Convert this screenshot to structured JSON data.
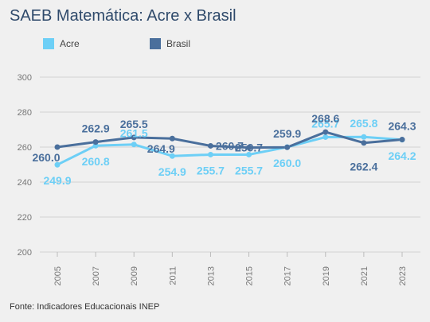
{
  "chart_data": {
    "type": "line",
    "title": "SAEB Matemática: Acre x Brasil",
    "categories": [
      "2005",
      "2007",
      "2009",
      "2011",
      "2013",
      "2015",
      "2017",
      "2019",
      "2021",
      "2023"
    ],
    "ylim": [
      200,
      300
    ],
    "yticks": [
      200,
      220,
      240,
      260,
      280,
      300
    ],
    "grid": true,
    "legend_position": "top-left",
    "series": [
      {
        "name": "Acre",
        "color": "#6dcff6",
        "values": [
          249.9,
          260.8,
          261.5,
          254.9,
          255.7,
          255.7,
          260.0,
          265.7,
          265.8,
          264.2
        ],
        "labels": [
          "249.9",
          "260.8",
          "261.5",
          "254.9",
          "255.7",
          "255.7",
          "260.0",
          "265.7",
          "265.8",
          "264.2"
        ]
      },
      {
        "name": "Brasil",
        "color": "#4a6f9c",
        "values": [
          260.0,
          262.9,
          265.5,
          264.9,
          260.7,
          259.7,
          259.9,
          268.6,
          262.4,
          264.3
        ],
        "labels": [
          "260.0",
          "262.9",
          "265.5",
          "264.9",
          "260.7",
          "259.7",
          "259.9",
          "268.6",
          "262.4",
          "264.3"
        ]
      }
    ]
  },
  "source": "Fonte: Indicadores Educacionais INEP"
}
